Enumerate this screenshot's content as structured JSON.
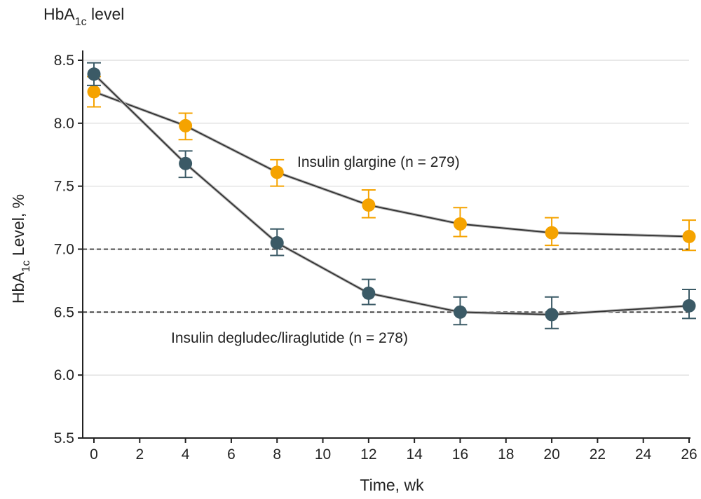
{
  "chart_data": {
    "type": "line",
    "title": "HbA",
    "title_subscript": "1c",
    "title_suffix": " level",
    "xlabel": "Time, wk",
    "ylabel": "HbA",
    "ylabel_subscript": "1c",
    "ylabel_suffix": " Level, %",
    "xlim": [
      0,
      26
    ],
    "ylim": [
      5.5,
      8.5
    ],
    "xticks": [
      0,
      2,
      4,
      6,
      8,
      10,
      12,
      14,
      16,
      18,
      20,
      22,
      24,
      26
    ],
    "yticks": [
      5.5,
      6.0,
      6.5,
      7.0,
      7.5,
      8.0,
      8.5
    ],
    "ytick_labels": [
      "5.5",
      "6.0",
      "6.5",
      "7.0",
      "7.5",
      "8.0",
      "8.5"
    ],
    "grid": "horizontal",
    "reference_lines": [
      7.0,
      6.5
    ],
    "series": [
      {
        "name": "Insulin glargine (n = 279)",
        "color": "#F5A300",
        "x": [
          0,
          4,
          8,
          12,
          16,
          20,
          26
        ],
        "y": [
          8.25,
          7.98,
          7.61,
          7.35,
          7.2,
          7.13,
          7.1
        ],
        "err_low": [
          8.13,
          7.87,
          7.5,
          7.25,
          7.1,
          7.03,
          6.99
        ],
        "err_high": [
          8.37,
          8.08,
          7.71,
          7.47,
          7.33,
          7.25,
          7.23
        ]
      },
      {
        "name": "Insulin degludec/liraglutide (n = 278)",
        "color": "#3B5A66",
        "x": [
          0,
          4,
          8,
          12,
          16,
          20,
          26
        ],
        "y": [
          8.39,
          7.68,
          7.05,
          6.65,
          6.5,
          6.48,
          6.55
        ],
        "err_low": [
          8.3,
          7.57,
          6.95,
          6.56,
          6.4,
          6.37,
          6.45
        ],
        "err_high": [
          8.48,
          7.78,
          7.16,
          6.76,
          6.62,
          6.62,
          6.68
        ]
      }
    ]
  }
}
